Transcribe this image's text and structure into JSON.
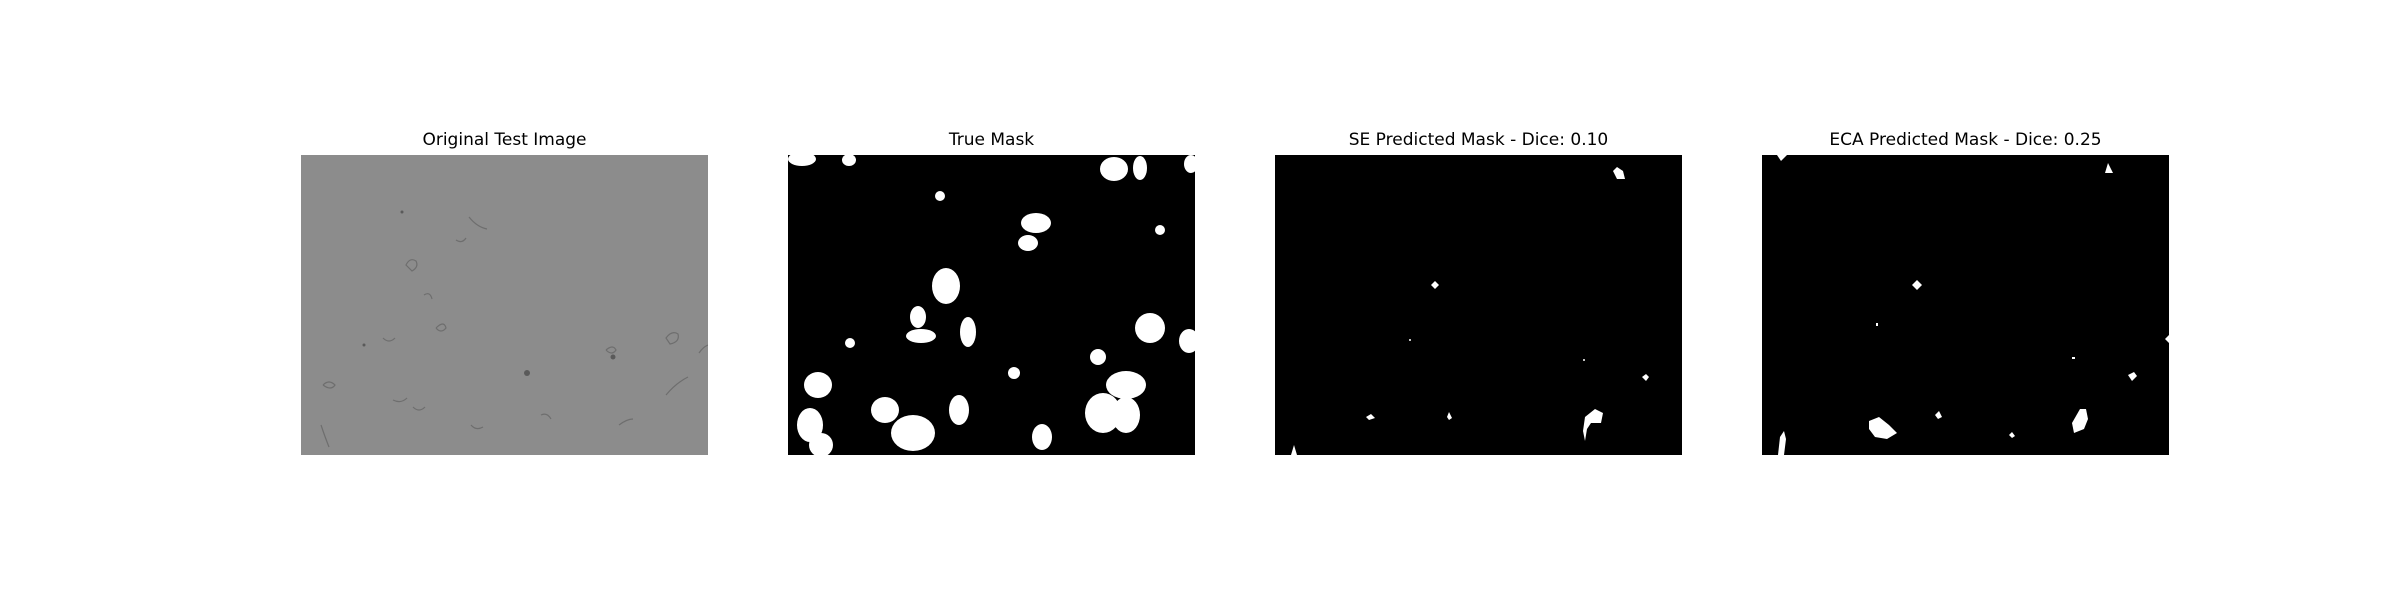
{
  "figure": {
    "panels": [
      {
        "title": "Original Test Image",
        "kind": "grayscale-microscopy"
      },
      {
        "title": "True Mask",
        "kind": "binary-mask"
      },
      {
        "title": "SE Predicted Mask - Dice: 0.10",
        "kind": "binary-mask"
      },
      {
        "title": "ECA Predicted Mask - Dice: 0.25",
        "kind": "binary-mask"
      }
    ],
    "colors": {
      "background": "#ffffff",
      "gray_field": "#8c8c8c",
      "mask_bg": "#000000",
      "mask_fg": "#ffffff"
    }
  }
}
